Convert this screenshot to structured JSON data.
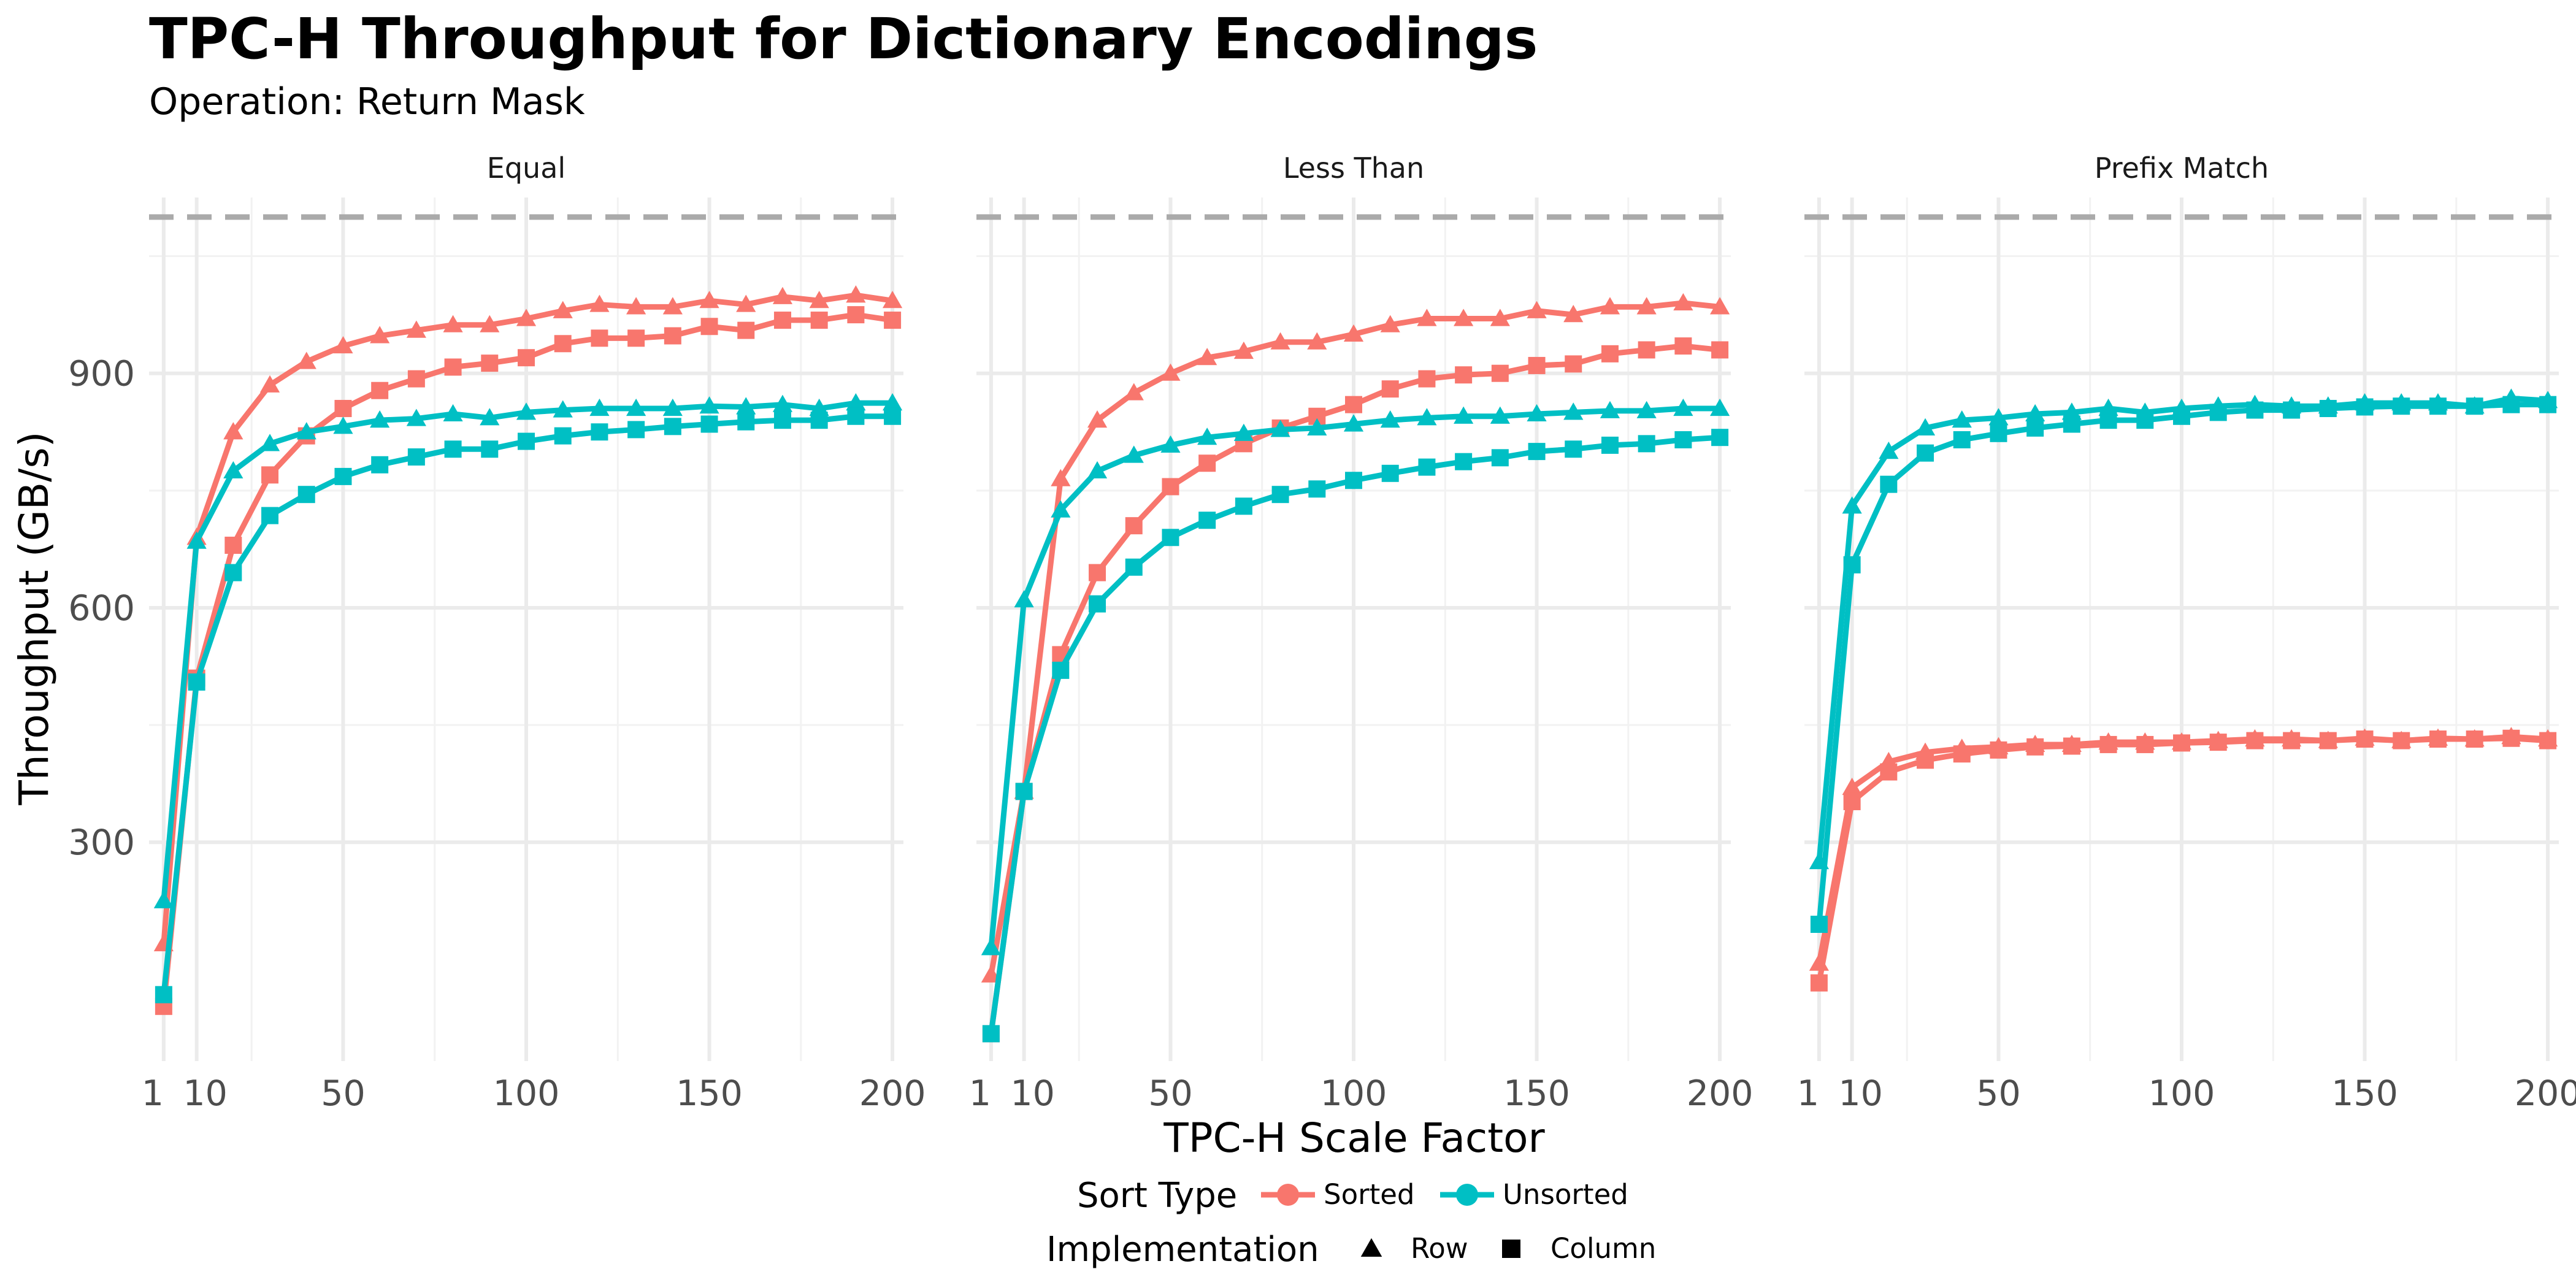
{
  "chart_data": {
    "type": "line",
    "title": "TPC-H Throughput for Dictionary Encodings",
    "subtitle": "Operation: Return Mask",
    "xlabel": "TPC-H Scale Factor",
    "ylabel": "Throughput (GB/s)",
    "xlim": [
      -3,
      203
    ],
    "ylim": [
      20,
      1125
    ],
    "x_ticks": [
      1,
      10,
      50,
      100,
      150,
      200
    ],
    "x_tick_labels": [
      "1",
      "10",
      "50",
      "100",
      "150",
      "200"
    ],
    "y_ticks": [
      300,
      600,
      900
    ],
    "reference_line": {
      "y": 1100,
      "style": "dashed",
      "color": "#aaaaaa"
    },
    "grid": true,
    "legend": {
      "position": "bottom",
      "sort_title": "Sort Type",
      "sort_items": [
        {
          "label": "Sorted",
          "color": "#F8766D"
        },
        {
          "label": "Unsorted",
          "color": "#00BFC4"
        }
      ],
      "impl_title": "Implementation",
      "impl_items": [
        {
          "label": "Row",
          "shape": "triangle"
        },
        {
          "label": "Column",
          "shape": "square"
        }
      ]
    },
    "x": [
      1,
      10,
      20,
      30,
      40,
      50,
      60,
      70,
      80,
      90,
      100,
      110,
      120,
      130,
      140,
      150,
      160,
      170,
      180,
      190,
      200
    ],
    "panels": [
      {
        "name": "Equal",
        "series": [
          {
            "sort": "Sorted",
            "impl": "Row",
            "values": [
              170,
              690,
              825,
              885,
              915,
              935,
              948,
              955,
              962,
              962,
              970,
              980,
              988,
              985,
              985,
              993,
              988,
              998,
              993,
              1000,
              993
            ]
          },
          {
            "sort": "Sorted",
            "impl": "Column",
            "values": [
              90,
              510,
              680,
              770,
              820,
              855,
              878,
              893,
              908,
              913,
              920,
              938,
              945,
              945,
              948,
              960,
              955,
              968,
              968,
              975,
              968
            ]
          },
          {
            "sort": "Unsorted",
            "impl": "Row",
            "values": [
              225,
              685,
              775,
              810,
              825,
              832,
              840,
              842,
              848,
              843,
              850,
              853,
              855,
              855,
              855,
              858,
              857,
              860,
              855,
              862,
              862
            ]
          },
          {
            "sort": "Unsorted",
            "impl": "Column",
            "values": [
              105,
              505,
              645,
              718,
              745,
              768,
              783,
              793,
              803,
              803,
              813,
              820,
              825,
              828,
              832,
              835,
              838,
              840,
              840,
              845,
              845
            ]
          }
        ]
      },
      {
        "name": "Less Than",
        "series": [
          {
            "sort": "Sorted",
            "impl": "Row",
            "values": [
              130,
              365,
              765,
              840,
              875,
              900,
              920,
              928,
              940,
              940,
              950,
              962,
              970,
              970,
              970,
              980,
              975,
              985,
              985,
              990,
              985
            ]
          },
          {
            "sort": "Sorted",
            "impl": "Column",
            "values": [
              55,
              365,
              540,
              645,
              705,
              755,
              785,
              810,
              830,
              845,
              860,
              880,
              893,
              898,
              900,
              910,
              912,
              925,
              930,
              935,
              930
            ]
          },
          {
            "sort": "Unsorted",
            "impl": "Row",
            "values": [
              165,
              610,
              725,
              775,
              795,
              808,
              818,
              823,
              828,
              830,
              835,
              840,
              843,
              845,
              845,
              848,
              850,
              852,
              852,
              855,
              855
            ]
          },
          {
            "sort": "Unsorted",
            "impl": "Column",
            "values": [
              55,
              365,
              520,
              605,
              652,
              690,
              712,
              730,
              745,
              752,
              763,
              772,
              780,
              787,
              792,
              800,
              803,
              808,
              810,
              815,
              818
            ]
          }
        ]
      },
      {
        "name": "Prefix Match",
        "series": [
          {
            "sort": "Sorted",
            "impl": "Row",
            "values": [
              145,
              370,
              403,
              415,
              420,
              422,
              425,
              425,
              428,
              428,
              428,
              430,
              432,
              432,
              430,
              433,
              430,
              433,
              432,
              435,
              432
            ]
          },
          {
            "sort": "Sorted",
            "impl": "Column",
            "values": [
              120,
              352,
              390,
              405,
              413,
              418,
              422,
              423,
              425,
              425,
              427,
              428,
              430,
              430,
              430,
              432,
              430,
              432,
              432,
              433,
              430
            ]
          },
          {
            "sort": "Unsorted",
            "impl": "Row",
            "values": [
              275,
              730,
              800,
              830,
              840,
              843,
              848,
              850,
              855,
              850,
              855,
              858,
              860,
              858,
              858,
              862,
              862,
              862,
              858,
              868,
              865
            ]
          },
          {
            "sort": "Unsorted",
            "impl": "Column",
            "values": [
              195,
              655,
              758,
              798,
              815,
              823,
              830,
              835,
              840,
              840,
              845,
              850,
              853,
              853,
              855,
              857,
              858,
              858,
              858,
              860,
              860
            ]
          }
        ]
      }
    ]
  }
}
